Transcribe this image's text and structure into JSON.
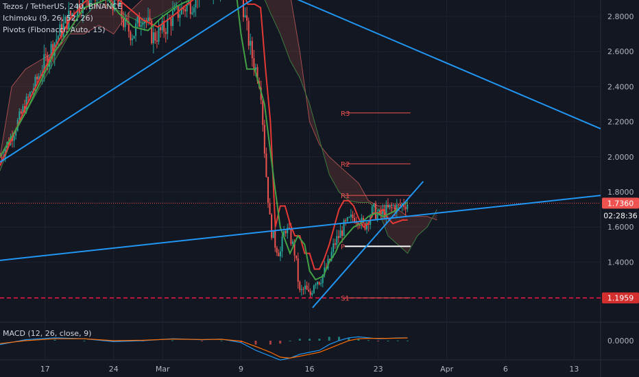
{
  "legend": {
    "main": "Tezos / TetherUS, 240, BINANCE",
    "ichimoku": "Ichimoku (9, 26, 52, 26)",
    "pivots": "Pivots (Fibonacci, Auto, 15)",
    "macd": "MACD (12, 26, close, 9)"
  },
  "colors": {
    "background": "#131722",
    "candle_up": "#26a69a",
    "candle_down": "#ef5350",
    "trendline": "#2196f3",
    "conversion": "#e53935",
    "base": "#43a047",
    "pivot": "#f05350",
    "price_label": "#ef5350",
    "support_line": "#ff1744",
    "pivot_p": "#ffffff"
  },
  "chart_data": {
    "type": "line",
    "title": "Tezos / TetherUS, 240, BINANCE",
    "y_range": [
      1.06,
      2.92
    ],
    "y_ticks": [
      {
        "value": 2.8,
        "label": "2.8000"
      },
      {
        "value": 2.6,
        "label": "2.6000"
      },
      {
        "value": 2.4,
        "label": "2.4000"
      },
      {
        "value": 2.2,
        "label": "2.2000"
      },
      {
        "value": 2.0,
        "label": "2.0000"
      },
      {
        "value": 1.8,
        "label": "1.8000"
      },
      {
        "value": 1.6,
        "label": "1.6000"
      },
      {
        "value": 1.4,
        "label": "1.4000"
      }
    ],
    "x_ticks": [
      {
        "day": 17,
        "label": "17"
      },
      {
        "day": 24,
        "label": "24"
      },
      {
        "day": 29,
        "label": "Mar"
      },
      {
        "day": 37,
        "label": "9"
      },
      {
        "day": 44,
        "label": "16"
      },
      {
        "day": 51,
        "label": "23"
      },
      {
        "day": 58,
        "label": "Apr"
      },
      {
        "day": 64,
        "label": "6"
      },
      {
        "day": 71,
        "label": "13"
      }
    ],
    "x_range": [
      12.4,
      73.7
    ],
    "current_price": {
      "value": 1.736,
      "label": "1.7360"
    },
    "countdown": {
      "value": 1.666,
      "label": "02:28:36"
    },
    "support_line": {
      "value": 1.1959,
      "label": "1.1959"
    },
    "pivots": [
      {
        "label": "R3",
        "value": 2.25,
        "start_day": 47.6,
        "end_day": 54.3
      },
      {
        "label": "R2",
        "value": 1.96,
        "start_day": 47.6,
        "end_day": 54.3
      },
      {
        "label": "R1",
        "value": 1.78,
        "start_day": 47.6,
        "end_day": 54.3
      },
      {
        "label": "P",
        "value": 1.49,
        "start_day": 47.6,
        "end_day": 54.3
      },
      {
        "label": "S1",
        "value": 1.196,
        "start_day": 47.6,
        "end_day": 54.3
      }
    ],
    "trendlines": [
      {
        "from": [
          12.4,
          1.97
        ],
        "to": [
          38.8,
          2.92
        ]
      },
      {
        "from": [
          41.8,
          2.92
        ],
        "to": [
          73.7,
          2.16
        ]
      },
      {
        "from": [
          12.4,
          1.41
        ],
        "to": [
          73.7,
          1.78
        ]
      },
      {
        "from": [
          44.3,
          1.14
        ],
        "to": [
          55.6,
          1.86
        ]
      }
    ],
    "series": [
      {
        "name": "Close",
        "x": [
          12.4,
          13.6,
          15,
          16.5,
          18,
          19.5,
          21,
          22.5,
          23.4,
          24.3,
          25.2,
          26,
          27,
          28,
          29,
          30,
          31,
          32,
          33,
          34,
          35,
          36,
          37,
          37.5,
          38,
          38.5,
          39,
          39.5,
          40,
          40.5,
          41,
          41.5,
          42,
          42.5,
          43,
          43.5,
          44,
          44.5,
          45,
          45.5,
          46,
          46.5,
          47,
          47.5,
          48,
          48.5,
          49,
          49.5,
          50,
          50.5,
          51,
          51.5,
          52,
          52.5,
          53,
          53.5,
          54
        ],
        "values": [
          2.0,
          2.12,
          2.3,
          2.48,
          2.66,
          2.8,
          2.9,
          2.95,
          2.9,
          2.88,
          2.74,
          2.7,
          2.82,
          2.68,
          2.72,
          2.8,
          2.84,
          2.88,
          2.98,
          2.98,
          2.98,
          2.97,
          2.95,
          2.75,
          2.6,
          2.5,
          2.4,
          1.95,
          1.6,
          1.5,
          1.45,
          1.6,
          1.55,
          1.45,
          1.22,
          1.25,
          1.2,
          1.3,
          1.3,
          1.34,
          1.4,
          1.5,
          1.55,
          1.6,
          1.63,
          1.66,
          1.65,
          1.6,
          1.65,
          1.7,
          1.66,
          1.68,
          1.7,
          1.72,
          1.71,
          1.73,
          1.736
        ]
      },
      {
        "name": "Conversion",
        "x": [
          12.4,
          13.6,
          15,
          16.5,
          18,
          19.5,
          21,
          22.5,
          24,
          25.5,
          27,
          28.5,
          30,
          31.5,
          33,
          34.5,
          36,
          37,
          37.7,
          38.4,
          39,
          39.5,
          40,
          40.5,
          41,
          41.5,
          42,
          42.5,
          43,
          43.5,
          44,
          44.5,
          45,
          45.5,
          46,
          46.5,
          47,
          47.5,
          48,
          48.5,
          49,
          49.5,
          50,
          50.5,
          51,
          51.5,
          52,
          52.5,
          53,
          53.5,
          54
        ],
        "values": [
          1.95,
          2.1,
          2.28,
          2.45,
          2.62,
          2.78,
          2.88,
          2.95,
          2.92,
          2.85,
          2.78,
          2.74,
          2.8,
          2.87,
          2.93,
          2.96,
          2.96,
          2.96,
          2.87,
          2.87,
          2.85,
          2.5,
          2.2,
          1.6,
          1.72,
          1.72,
          1.62,
          1.55,
          1.55,
          1.45,
          1.45,
          1.36,
          1.36,
          1.42,
          1.5,
          1.6,
          1.7,
          1.75,
          1.75,
          1.72,
          1.65,
          1.6,
          1.62,
          1.68,
          1.68,
          1.7,
          1.65,
          1.62,
          1.63,
          1.64,
          1.64
        ]
      },
      {
        "name": "Base",
        "x": [
          12.4,
          15,
          18,
          21,
          23.4,
          24.5,
          26,
          27.5,
          29,
          30.5,
          32,
          33.5,
          35,
          36.5,
          37,
          37.6,
          38.4,
          39.4,
          40.4,
          41,
          42,
          42.8,
          43.5,
          44,
          44.6,
          45.4,
          46,
          46.6,
          47,
          47.7,
          48.5,
          49.2,
          50,
          50.8,
          51.5,
          52.3,
          53,
          53.6,
          54
        ],
        "values": [
          2.0,
          2.25,
          2.6,
          2.85,
          2.9,
          2.82,
          2.74,
          2.72,
          2.8,
          2.86,
          2.9,
          2.92,
          2.94,
          2.94,
          2.7,
          2.5,
          2.5,
          2.3,
          1.85,
          1.6,
          1.45,
          1.55,
          1.5,
          1.35,
          1.3,
          1.32,
          1.4,
          1.45,
          1.5,
          1.55,
          1.6,
          1.62,
          1.66,
          1.68,
          1.66,
          1.68,
          1.7,
          1.73,
          1.74
        ]
      },
      {
        "name": "Cloud A",
        "x": [
          12.4,
          13.6,
          15,
          16.5,
          18,
          19.5,
          21,
          22.5,
          24,
          25.5,
          27,
          28.5,
          30,
          31,
          32,
          33,
          34,
          35,
          36,
          37,
          38,
          39,
          40,
          41,
          42,
          43,
          44,
          45,
          46,
          47,
          48,
          49,
          50,
          51,
          52,
          53,
          54,
          55,
          56,
          57
        ],
        "values": [
          2.0,
          2.4,
          2.5,
          2.55,
          2.6,
          2.7,
          2.7,
          2.75,
          2.7,
          2.82,
          2.9,
          2.9,
          2.95,
          3.0,
          3.0,
          3.0,
          3.0,
          3.0,
          3.0,
          2.98,
          2.98,
          2.97,
          2.97,
          2.93,
          2.93,
          2.6,
          2.2,
          2.07,
          2.0,
          1.95,
          1.9,
          1.85,
          1.75,
          1.72,
          1.72,
          1.7,
          1.66,
          1.66,
          1.66,
          1.64
        ]
      },
      {
        "name": "Cloud B",
        "x": [
          12.4,
          13.6,
          15,
          16.5,
          18,
          19.5,
          21,
          22.5,
          24,
          25.5,
          27,
          28.5,
          30,
          31,
          32,
          33,
          34,
          35,
          36,
          37,
          38,
          39,
          40,
          41,
          42,
          43,
          44,
          45,
          46,
          47,
          48,
          49,
          50,
          51,
          52,
          53,
          54,
          55,
          56,
          57
        ],
        "values": [
          1.92,
          2.1,
          2.25,
          2.4,
          2.55,
          2.7,
          2.8,
          2.88,
          2.85,
          2.8,
          2.76,
          2.8,
          2.85,
          2.9,
          2.95,
          2.95,
          2.95,
          2.95,
          2.95,
          2.95,
          2.95,
          2.95,
          2.82,
          2.7,
          2.55,
          2.45,
          2.3,
          2.1,
          1.9,
          1.8,
          1.75,
          1.74,
          1.74,
          1.7,
          1.55,
          1.5,
          1.45,
          1.55,
          1.6,
          1.7
        ]
      }
    ],
    "macd": {
      "title": "MACD (12, 26, close, 9)",
      "y_ticks": [
        {
          "value": 0,
          "label": "0.0000"
        }
      ],
      "y_range": [
        -0.12,
        0.05
      ],
      "x": [
        12.4,
        15,
        18,
        21,
        24,
        27,
        30,
        33,
        35,
        37,
        38.5,
        40,
        41,
        42,
        43,
        44,
        45,
        46,
        47,
        48,
        49,
        50,
        51,
        52,
        53,
        54
      ],
      "macd": [
        -0.02,
        0.005,
        0.015,
        0.01,
        -0.005,
        0.0,
        0.01,
        0.005,
        0.008,
        -0.01,
        -0.05,
        -0.08,
        -0.1,
        -0.09,
        -0.07,
        -0.06,
        -0.05,
        -0.02,
        0.0,
        0.015,
        0.02,
        0.015,
        0.01,
        0.012,
        0.014,
        0.015
      ],
      "signal": [
        -0.015,
        0.0,
        0.01,
        0.01,
        0.0,
        0.002,
        0.008,
        0.006,
        0.007,
        -0.002,
        -0.03,
        -0.06,
        -0.085,
        -0.09,
        -0.08,
        -0.07,
        -0.06,
        -0.04,
        -0.02,
        0.0,
        0.01,
        0.012,
        0.012,
        0.012,
        0.013,
        0.014
      ]
    }
  }
}
